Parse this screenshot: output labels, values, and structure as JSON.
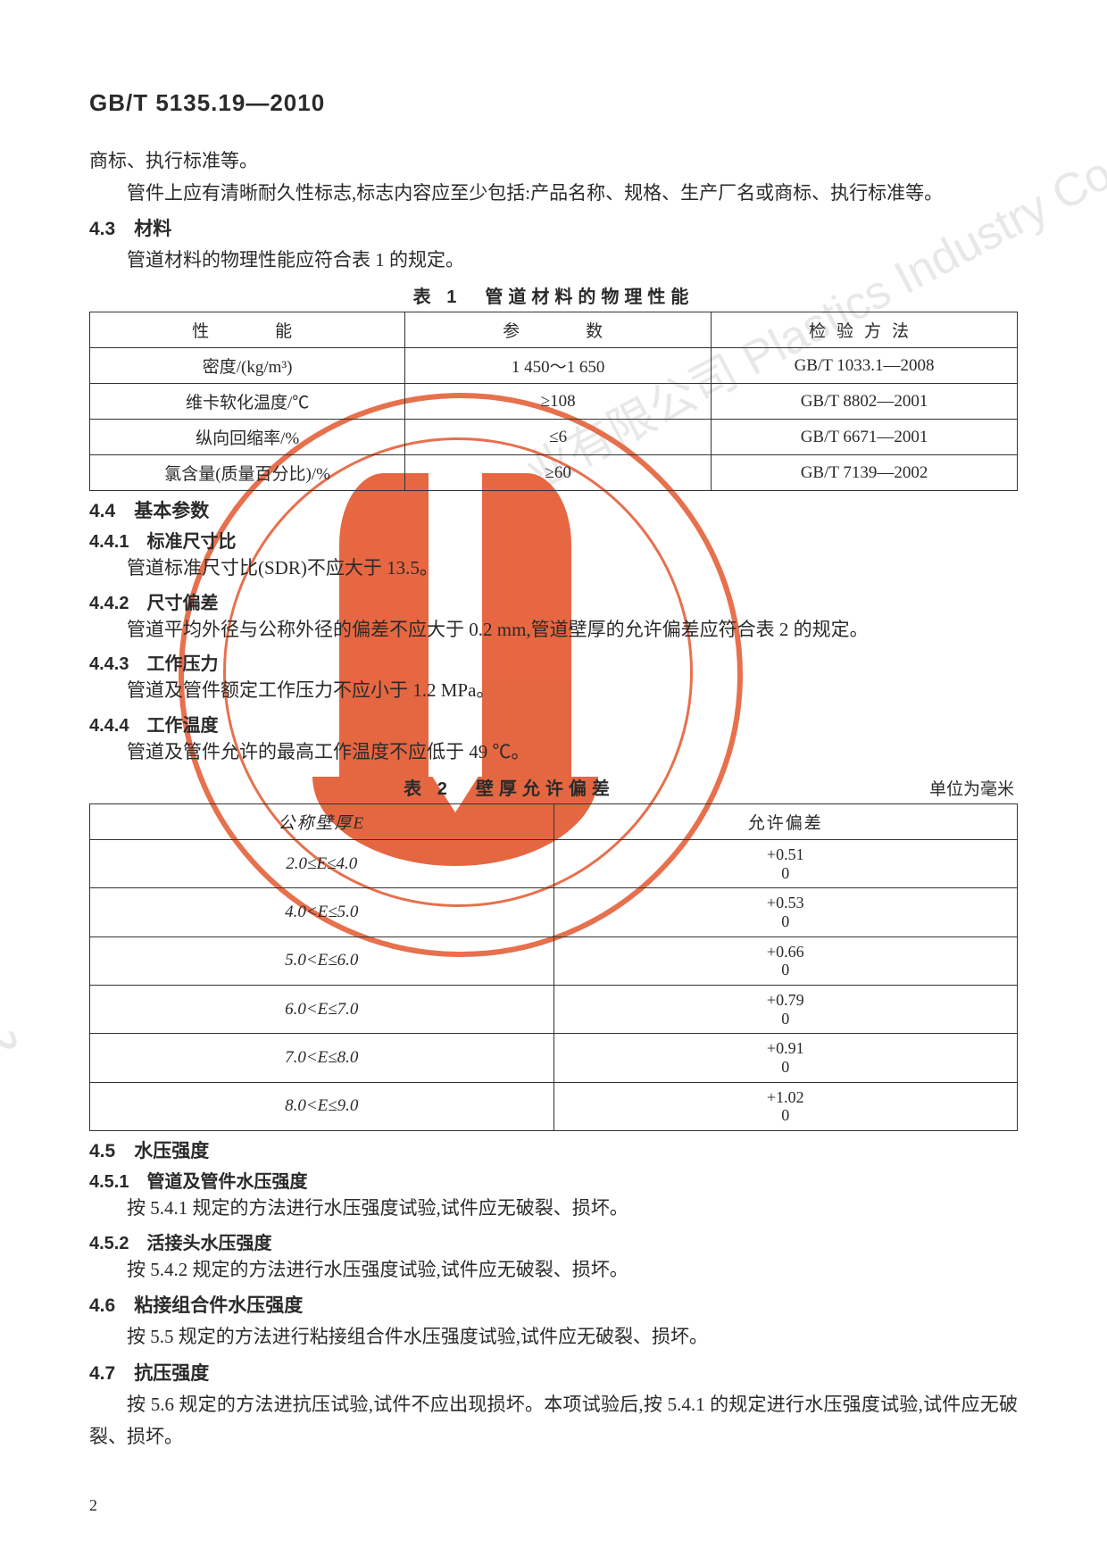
{
  "header": "GB/T 5135.19—2010",
  "intro_line1": "商标、执行标准等。",
  "intro_line2": "管件上应有清晰耐久性标志,标志内容应至少包括:产品名称、规格、生产厂名或商标、执行标准等。",
  "s4_3": {
    "title": "4.3　材料",
    "body": "管道材料的物理性能应符合表 1 的规定。"
  },
  "table1": {
    "title": "表 1　管道材料的物理性能",
    "columns": [
      "性　　能",
      "参　　数",
      "检验方法"
    ],
    "rows": [
      [
        "密度/(kg/m³)",
        "1 450～1 650",
        "GB/T 1033.1—2008"
      ],
      [
        "维卡软化温度/℃",
        "≥108",
        "GB/T 8802—2001"
      ],
      [
        "纵向回缩率/%",
        "≤6",
        "GB/T 6671—2001"
      ],
      [
        "氯含量(质量百分比)/%",
        "≥60",
        "GB/T 7139—2002"
      ]
    ],
    "col_widths": [
      "34%",
      "33%",
      "33%"
    ]
  },
  "s4_4": {
    "title": "4.4　基本参数"
  },
  "s4_4_1": {
    "title": "4.4.1　标准尺寸比",
    "body": "管道标准尺寸比(SDR)不应大于 13.5。"
  },
  "s4_4_2": {
    "title": "4.4.2　尺寸偏差",
    "body": "管道平均外径与公称外径的偏差不应大于 0.2 mm,管道壁厚的允许偏差应符合表 2 的规定。"
  },
  "s4_4_3": {
    "title": "4.4.3　工作压力",
    "body": "管道及管件额定工作压力不应小于 1.2 MPa。"
  },
  "s4_4_4": {
    "title": "4.4.4　工作温度",
    "body": "管道及管件允许的最高工作温度不应低于 49 ℃。"
  },
  "table2": {
    "title": "表 2　壁厚允许偏差",
    "unit": "单位为毫米",
    "columns": [
      "公称壁厚E",
      "允许偏差"
    ],
    "rows": [
      {
        "range": "2.0≤E≤4.0",
        "upper": "+0.51",
        "lower": "0"
      },
      {
        "range": "4.0<E≤5.0",
        "upper": "+0.53",
        "lower": "0"
      },
      {
        "range": "5.0<E≤6.0",
        "upper": "+0.66",
        "lower": "0"
      },
      {
        "range": "6.0<E≤7.0",
        "upper": "+0.79",
        "lower": "0"
      },
      {
        "range": "7.0<E≤8.0",
        "upper": "+0.91",
        "lower": "0"
      },
      {
        "range": "8.0<E≤9.0",
        "upper": "+1.02",
        "lower": "0"
      }
    ],
    "col_widths": [
      "50%",
      "50%"
    ]
  },
  "s4_5": {
    "title": "4.5　水压强度"
  },
  "s4_5_1": {
    "title": "4.5.1　管道及管件水压强度",
    "body": "按 5.4.1 规定的方法进行水压强度试验,试件应无破裂、损坏。"
  },
  "s4_5_2": {
    "title": "4.5.2　活接头水压强度",
    "body": "按 5.4.2 规定的方法进行水压强度试验,试件应无破裂、损坏。"
  },
  "s4_6": {
    "title": "4.6　粘接组合件水压强度",
    "body": "按 5.5 规定的方法进行粘接组合件水压强度试验,试件应无破裂、损坏。"
  },
  "s4_7": {
    "title": "4.7　抗压强度",
    "body": "按 5.6 规定的方法进抗压试验,试件不应出现损坏。本项试验后,按 5.4.1 的规定进行水压强度试验,试件应无破裂、损坏。"
  },
  "page_number": "2",
  "watermark1": "业有限公司 Plastics Industry Co., Ltd.",
  "watermark2": "成",
  "colors": {
    "stamp": "#e3572e",
    "text": "#2a2a2a",
    "watermark": "#e8e8e8",
    "bg": "#ffffff"
  }
}
